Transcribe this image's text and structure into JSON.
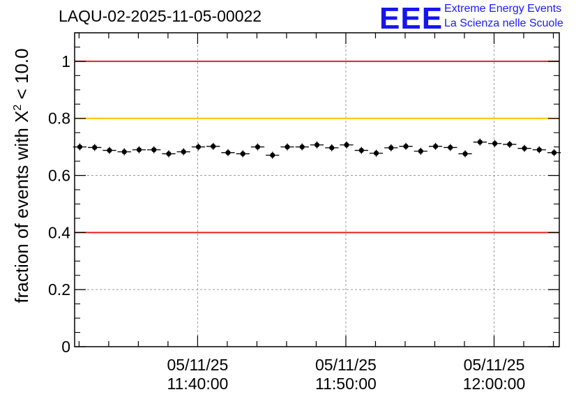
{
  "header": {
    "run_title": "LAQU-02-2025-11-05-00022",
    "logo_mark": "EEE",
    "logo_line1": "Extreme Energy Events",
    "logo_line2": "La Scienza nelle Scuole"
  },
  "colors": {
    "red_line": "#e8201c",
    "yellow_line": "#ffc000",
    "marker": "#000000",
    "grid": "#9a9a9a",
    "logo": "#1515ee"
  },
  "chart_data": {
    "type": "scatter",
    "title": "LAQU-02-2025-11-05-00022",
    "xlabel": "",
    "ylabel_parts": {
      "prefix": "fraction of events with ",
      "symbol": "X",
      "superscript": "2",
      "suffix": " < 10.0"
    },
    "xlim_minutes": [
      -14.3,
      18.4
    ],
    "ylim": [
      0,
      1.1
    ],
    "y_ticks": [
      {
        "value": 0,
        "label": "0"
      },
      {
        "value": 0.2,
        "label": "0.2"
      },
      {
        "value": 0.4,
        "label": "0.4"
      },
      {
        "value": 0.6,
        "label": "0.6"
      },
      {
        "value": 0.8,
        "label": "0.8"
      },
      {
        "value": 1.0,
        "label": "1"
      }
    ],
    "x_ticks": [
      {
        "minutes": -6,
        "date": "05/11/25",
        "time": "11:40:00"
      },
      {
        "minutes": 4,
        "date": "05/11/25",
        "time": "11:50:00"
      },
      {
        "minutes": 14,
        "date": "05/11/25",
        "time": "12:00:00"
      }
    ],
    "grid": true,
    "reference_lines": [
      {
        "value": 1.0,
        "color": "#e8201c"
      },
      {
        "value": 0.8,
        "color": "#ffc000"
      },
      {
        "value": 0.4,
        "color": "#e8201c"
      }
    ],
    "bin_width_minutes": 1,
    "first_bin_center_minutes": -13.95,
    "values": [
      0.7,
      0.698,
      0.688,
      0.683,
      0.69,
      0.69,
      0.676,
      0.683,
      0.7,
      0.702,
      0.68,
      0.676,
      0.7,
      0.671,
      0.7,
      0.7,
      0.707,
      0.697,
      0.707,
      0.688,
      0.678,
      0.697,
      0.702,
      0.685,
      0.702,
      0.698,
      0.676,
      0.717,
      0.712,
      0.709,
      0.695,
      0.69,
      0.68
    ]
  }
}
